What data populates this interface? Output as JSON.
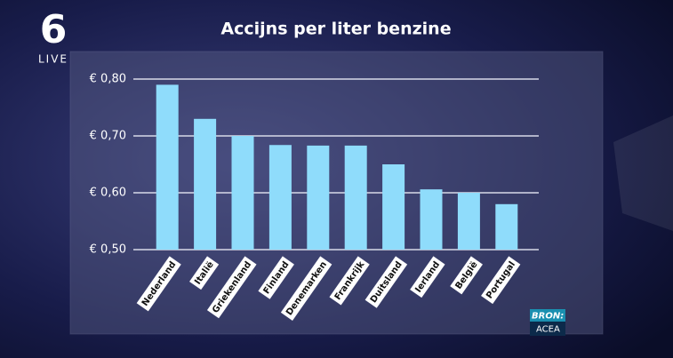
{
  "logo": {
    "number": "6",
    "text": "LIVE"
  },
  "source": {
    "label": "BRON:",
    "text": "ACEA"
  },
  "chart_data": {
    "type": "bar",
    "title": "Accijns per liter benzine",
    "categories": [
      "Nederland",
      "Italië",
      "Griekenland",
      "Finland",
      "Denemarken",
      "Frankrijk",
      "Duitsland",
      "Ierland",
      "België",
      "Portugal"
    ],
    "values": [
      0.79,
      0.73,
      0.7,
      0.684,
      0.683,
      0.683,
      0.65,
      0.606,
      0.6,
      0.58
    ],
    "color": "#8fdcfb",
    "ylim": [
      0.5,
      0.8
    ],
    "yticks": [
      {
        "value": 0.5,
        "label": "€ 0,50"
      },
      {
        "value": 0.6,
        "label": "€ 0,60"
      },
      {
        "value": 0.7,
        "label": "€ 0,70"
      },
      {
        "value": 0.8,
        "label": "€ 0,80"
      }
    ],
    "grid": true
  }
}
